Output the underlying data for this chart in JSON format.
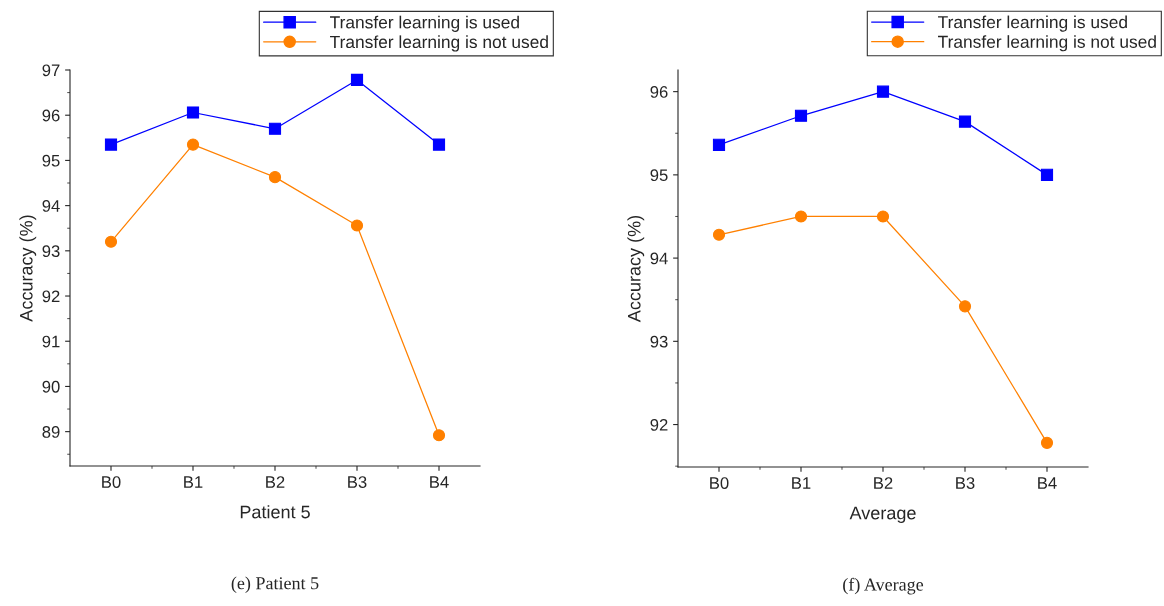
{
  "chart_data": [
    {
      "type": "line",
      "xlabel": "Patient 5",
      "ylabel": "Accuracy (%)",
      "categories": [
        "B0",
        "B1",
        "B2",
        "B3",
        "B4"
      ],
      "ylim": [
        88.24,
        97
      ],
      "yticks": [
        89,
        90,
        91,
        92,
        93,
        94,
        95,
        96,
        97
      ],
      "grid": false,
      "legend": "top right",
      "line_style": "solid",
      "series": [
        {
          "name": "Transfer learning is used",
          "color": "#0000ff",
          "marker": "square",
          "values": [
            95.35,
            96.06,
            95.7,
            96.78,
            95.35
          ]
        },
        {
          "name": "Transfer learning is not used",
          "color": "#ff8000",
          "marker": "circle",
          "values": [
            93.2,
            95.35,
            94.63,
            93.56,
            88.92
          ]
        }
      ],
      "annotations": [
        "(e) Patient 5"
      ]
    },
    {
      "type": "line",
      "xlabel": "Average",
      "ylabel": "Accuracy (%)",
      "categories": [
        "B0",
        "B1",
        "B2",
        "B3",
        "B4"
      ],
      "ylim": [
        91.49,
        96.26
      ],
      "yticks": [
        92,
        93,
        94,
        95,
        96
      ],
      "grid": false,
      "legend": "top right",
      "line_style": "solid",
      "series": [
        {
          "name": "Transfer learning is used",
          "color": "#0000ff",
          "marker": "square",
          "values": [
            95.36,
            95.71,
            96.0,
            95.64,
            95.0
          ]
        },
        {
          "name": "Transfer learning is not used",
          "color": "#ff8000",
          "marker": "circle",
          "values": [
            94.28,
            94.5,
            94.5,
            93.42,
            91.78
          ]
        }
      ],
      "annotations": [
        "(f) Average"
      ]
    }
  ]
}
